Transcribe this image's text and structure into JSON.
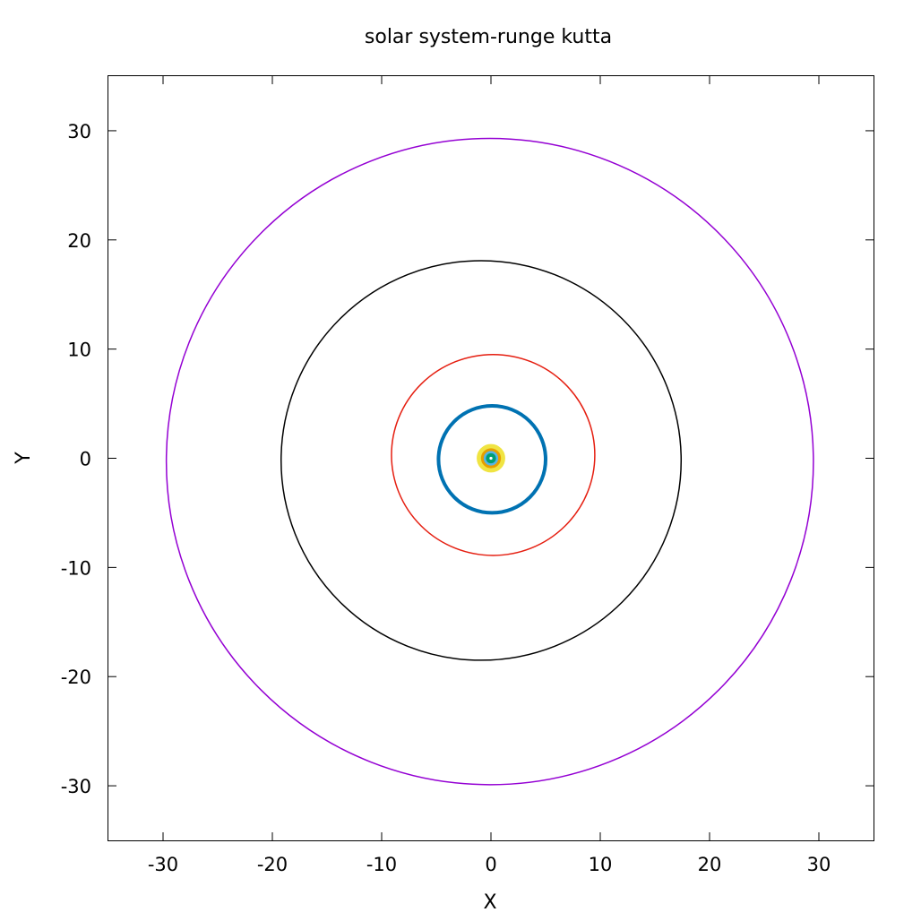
{
  "chart_data": {
    "type": "line",
    "title": "solar system-runge kutta",
    "xlabel": "X",
    "ylabel": "Y",
    "xlim": [
      -35,
      35
    ],
    "ylim": [
      -35,
      35
    ],
    "xticks": [
      -30,
      -20,
      -10,
      0,
      10,
      20,
      30
    ],
    "yticks": [
      -30,
      -20,
      -10,
      0,
      10,
      20,
      30
    ],
    "xtick_labels": [
      "-30",
      "-20",
      "-10",
      "0",
      "10",
      "20",
      "30"
    ],
    "ytick_labels": [
      "-30",
      "-20",
      "-10",
      "0",
      "10",
      "20",
      "30"
    ],
    "grid": false,
    "legend": "none",
    "series": [
      {
        "shape": "ellipse",
        "center": [
          -0.1,
          -0.3
        ],
        "radii": [
          29.6,
          29.6
        ],
        "color": "#9400d3",
        "line_width": 1.5
      },
      {
        "shape": "ellipse",
        "center": [
          -0.9,
          -0.2
        ],
        "radii": [
          18.3,
          18.3
        ],
        "color": "#000000",
        "line_width": 1.5
      },
      {
        "shape": "ellipse",
        "center": [
          0.2,
          0.3
        ],
        "radii": [
          9.3,
          9.2
        ],
        "color": "#e51e10",
        "line_width": 1.5
      },
      {
        "shape": "ellipse",
        "center": [
          0.1,
          -0.1
        ],
        "radii": [
          4.9,
          4.9
        ],
        "color": "#0072b2",
        "line_width": 4
      },
      {
        "shape": "ellipse",
        "center": [
          0.0,
          0.0
        ],
        "radii": [
          1.1,
          1.1
        ],
        "color": "#f0e442",
        "line_width": 5
      },
      {
        "shape": "ellipse",
        "center": [
          0.0,
          0.0
        ],
        "radii": [
          0.75,
          0.75
        ],
        "color": "#e69f00",
        "line_width": 4
      },
      {
        "shape": "ellipse",
        "center": [
          0.0,
          0.0
        ],
        "radii": [
          0.5,
          0.5
        ],
        "color": "#56b4e9",
        "line_width": 4
      },
      {
        "shape": "ellipse",
        "center": [
          0.0,
          0.0
        ],
        "radii": [
          0.3,
          0.3
        ],
        "color": "#009e73",
        "line_width": 4
      }
    ]
  }
}
